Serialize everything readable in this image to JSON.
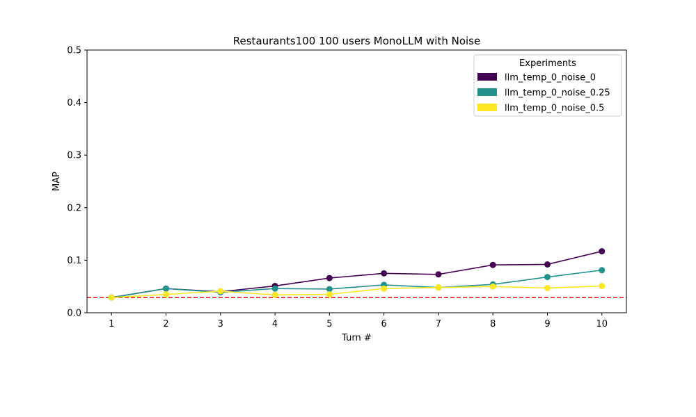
{
  "chart_data": {
    "type": "line",
    "title": "Restaurants100 100 users MonoLLM with Noise",
    "xlabel": "Turn #",
    "ylabel": "MAP",
    "x": [
      1,
      2,
      3,
      4,
      5,
      6,
      7,
      8,
      9,
      10
    ],
    "x_ticks": [
      "1",
      "2",
      "3",
      "4",
      "5",
      "6",
      "7",
      "8",
      "9",
      "10"
    ],
    "ylim": [
      0,
      0.5
    ],
    "y_ticks": [
      "0.0",
      "0.1",
      "0.2",
      "0.3",
      "0.4",
      "0.5"
    ],
    "grid": false,
    "legend": {
      "title": "Experiments",
      "placement": "top-right"
    },
    "series": [
      {
        "name": "llm_temp_0_noise_0",
        "color": "#440154",
        "values": [
          0.029,
          0.046,
          0.04,
          0.051,
          0.066,
          0.075,
          0.073,
          0.091,
          0.092,
          0.117
        ]
      },
      {
        "name": "llm_temp_0_noise_0.25",
        "color": "#21918c",
        "values": [
          0.029,
          0.046,
          0.039,
          0.046,
          0.045,
          0.053,
          0.048,
          0.054,
          0.068,
          0.081
        ]
      },
      {
        "name": "llm_temp_0_noise_0.5",
        "color": "#fde725",
        "values": [
          0.029,
          0.035,
          0.041,
          0.034,
          0.035,
          0.046,
          0.048,
          0.05,
          0.047,
          0.051
        ]
      }
    ],
    "baseline": {
      "value": 0.029,
      "color": "#e31a1c",
      "style": "dashed"
    }
  }
}
